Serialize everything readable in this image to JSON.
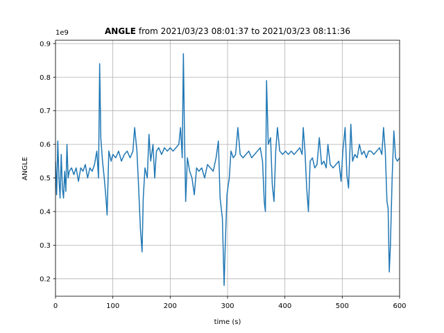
{
  "chart_data": {
    "type": "line",
    "title": {
      "bold": "ANGLE",
      "rest": "from 2021/03/23 08:01:37 to 2021/03/23 08:11:36"
    },
    "xlabel": "time (s)",
    "ylabel": "ANGLE",
    "y_offset_label": "1e9",
    "xlim": [
      0,
      600
    ],
    "xticks": [
      0,
      100,
      200,
      300,
      400,
      500,
      600
    ],
    "ylim": [
      0.148,
      0.91
    ],
    "yticks": [
      0.2,
      0.3,
      0.4,
      0.5,
      0.6,
      0.7,
      0.8,
      0.9
    ],
    "grid": true,
    "series": [
      {
        "color": "#1f77b4",
        "x": [
          0,
          2,
          4,
          6,
          8,
          10,
          12,
          14,
          16,
          18,
          20,
          22,
          24,
          28,
          32,
          36,
          40,
          44,
          48,
          52,
          56,
          60,
          64,
          68,
          72,
          75,
          77,
          79,
          82,
          85,
          88,
          90,
          93,
          97,
          100,
          105,
          110,
          115,
          120,
          125,
          130,
          135,
          138,
          142,
          145,
          148,
          151,
          153,
          156,
          160,
          163,
          166,
          170,
          173,
          176,
          180,
          185,
          190,
          195,
          200,
          205,
          210,
          215,
          218,
          221,
          223,
          225,
          227,
          230,
          234,
          238,
          242,
          246,
          250,
          255,
          260,
          265,
          270,
          275,
          280,
          284,
          287,
          291,
          294,
          296,
          299,
          303,
          306,
          310,
          314,
          318,
          322,
          327,
          332,
          337,
          342,
          347,
          352,
          357,
          361,
          364,
          366,
          368,
          371,
          375,
          378,
          381,
          384,
          387,
          391,
          396,
          401,
          406,
          411,
          416,
          421,
          426,
          430,
          432,
          435,
          438,
          441,
          444,
          448,
          452,
          456,
          460,
          464,
          468,
          472,
          475,
          479,
          484,
          489,
          494,
          498,
          501,
          505,
          508,
          511,
          515,
          518,
          522,
          526,
          530,
          534,
          538,
          542,
          546,
          550,
          555,
          560,
          565,
          569,
          572,
          575,
          578,
          580,
          582,
          584,
          587,
          590,
          593,
          596,
          600
        ],
        "values": [
          0.55,
          0.45,
          0.61,
          0.5,
          0.44,
          0.57,
          0.47,
          0.44,
          0.52,
          0.46,
          0.6,
          0.5,
          0.52,
          0.53,
          0.51,
          0.53,
          0.49,
          0.53,
          0.52,
          0.54,
          0.5,
          0.53,
          0.52,
          0.54,
          0.58,
          0.5,
          0.84,
          0.62,
          0.55,
          0.5,
          0.44,
          0.39,
          0.58,
          0.55,
          0.57,
          0.56,
          0.58,
          0.55,
          0.57,
          0.58,
          0.56,
          0.58,
          0.65,
          0.58,
          0.47,
          0.35,
          0.28,
          0.44,
          0.53,
          0.5,
          0.63,
          0.55,
          0.6,
          0.5,
          0.58,
          0.59,
          0.57,
          0.59,
          0.58,
          0.59,
          0.58,
          0.59,
          0.6,
          0.65,
          0.56,
          0.87,
          0.62,
          0.43,
          0.56,
          0.52,
          0.5,
          0.45,
          0.53,
          0.52,
          0.53,
          0.5,
          0.54,
          0.53,
          0.52,
          0.56,
          0.61,
          0.44,
          0.38,
          0.18,
          0.3,
          0.45,
          0.5,
          0.58,
          0.56,
          0.57,
          0.65,
          0.57,
          0.56,
          0.57,
          0.58,
          0.56,
          0.57,
          0.58,
          0.59,
          0.55,
          0.43,
          0.4,
          0.79,
          0.6,
          0.62,
          0.48,
          0.43,
          0.58,
          0.65,
          0.58,
          0.57,
          0.58,
          0.57,
          0.58,
          0.57,
          0.58,
          0.59,
          0.57,
          0.65,
          0.58,
          0.47,
          0.4,
          0.55,
          0.56,
          0.53,
          0.54,
          0.62,
          0.54,
          0.55,
          0.53,
          0.6,
          0.54,
          0.53,
          0.54,
          0.55,
          0.49,
          0.58,
          0.65,
          0.51,
          0.47,
          0.66,
          0.55,
          0.57,
          0.56,
          0.6,
          0.57,
          0.58,
          0.56,
          0.58,
          0.58,
          0.57,
          0.58,
          0.59,
          0.57,
          0.65,
          0.58,
          0.43,
          0.41,
          0.22,
          0.3,
          0.5,
          0.64,
          0.56,
          0.55,
          0.56
        ]
      }
    ]
  }
}
